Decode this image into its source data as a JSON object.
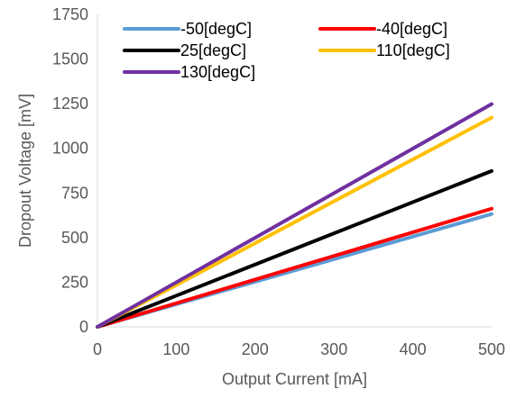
{
  "chart_data": {
    "type": "line",
    "title": "",
    "xlabel": "Output Current [mA]",
    "ylabel": "Dropout Voltage [mV]",
    "xlim": [
      0,
      500
    ],
    "ylim": [
      0,
      1750
    ],
    "xticks": [
      0,
      100,
      200,
      300,
      400,
      500
    ],
    "yticks": [
      0,
      250,
      500,
      750,
      1000,
      1250,
      1500,
      1750
    ],
    "grid": false,
    "legend_position": "top",
    "series": [
      {
        "name": "-50[degC]",
        "color": "#5B9BD5",
        "x": [
          0,
          500
        ],
        "y": [
          0,
          632
        ]
      },
      {
        "name": "-40[degC]",
        "color": "#FF0000",
        "x": [
          0,
          500
        ],
        "y": [
          0,
          662
        ]
      },
      {
        "name": "25[degC]",
        "color": "#000000",
        "x": [
          0,
          500
        ],
        "y": [
          0,
          873
        ]
      },
      {
        "name": "110[degC]",
        "color": "#FFC000",
        "x": [
          0,
          500
        ],
        "y": [
          0,
          1172
        ]
      },
      {
        "name": "130[degC]",
        "color": "#7030A0",
        "x": [
          0,
          500
        ],
        "y": [
          0,
          1248
        ]
      }
    ]
  }
}
